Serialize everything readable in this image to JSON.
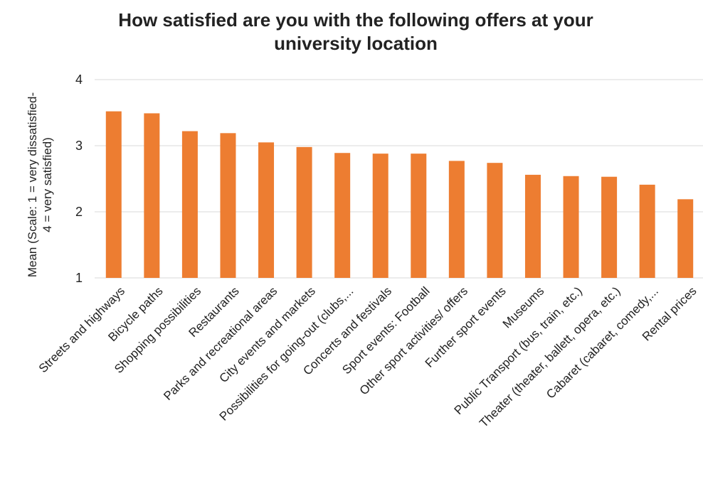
{
  "chart_data": {
    "type": "bar",
    "title_line1": "How satisfied are you with the following offers at your",
    "title_line2": "university location",
    "ylabel_line1": "Mean (Scale: 1 = very dissatisfied-",
    "ylabel_line2": "4 = very satisfied)",
    "xlabel": "",
    "ylim": [
      1,
      4
    ],
    "yticks": [
      "1",
      "2",
      "3",
      "4"
    ],
    "grid": true,
    "legend": "none",
    "bar_color": "#ED7D31",
    "categories": [
      "Streets and highways",
      "Bicycle paths",
      "Shopping possibilities",
      "Restaurants",
      "Parks and recreational areas",
      "City events and markets",
      "Possibilities for going-out (clubs,...",
      "Concerts and festivals",
      "Sport events: Football",
      "Other sport activities/ offers",
      "Further sport events",
      "Museums",
      "Public Transport (bus, train, etc.)",
      "Theater (theater, ballett, opera, etc.)",
      "Cabaret (cabaret, comedy,...",
      "Rental prices"
    ],
    "values": [
      3.52,
      3.49,
      3.22,
      3.19,
      3.05,
      2.98,
      2.89,
      2.88,
      2.88,
      2.77,
      2.74,
      2.56,
      2.54,
      2.53,
      2.41,
      2.19
    ]
  }
}
